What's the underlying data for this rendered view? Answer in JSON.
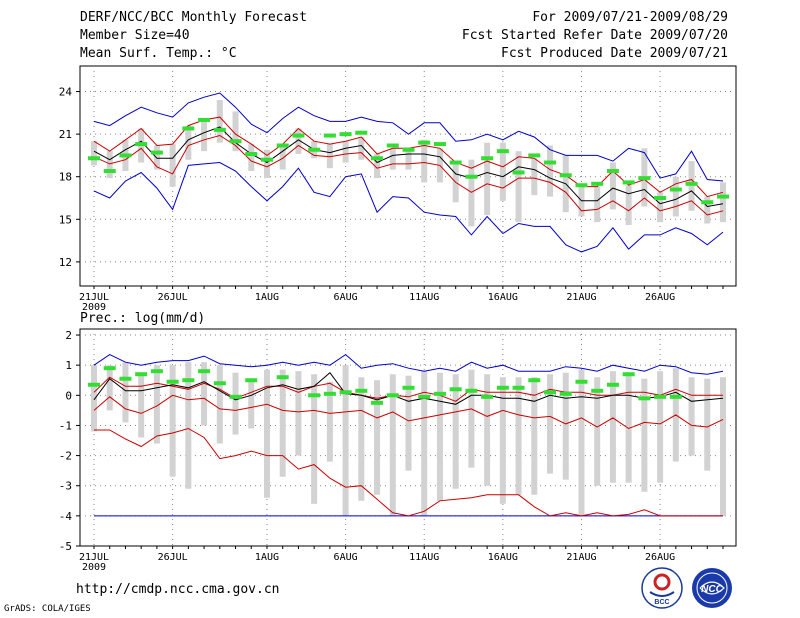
{
  "header": {
    "title": "DERF/NCC/BCC Monthly Forecast",
    "member": "Member Size=40",
    "variable": "Mean Surf. Temp.: °C",
    "period": "For 2009/07/21-2009/08/29",
    "started": "Fcst Started Refer Date 2009/07/20",
    "produced": "Fcst Produced Date 2009/07/21"
  },
  "precip_label": "Prec.: log(mm/d)",
  "url": "http://cmdp.ncc.cma.gov.cn",
  "credit": "GrADS: COLA/IGES",
  "logos": {
    "bcc": "BCC",
    "ncc": "NCC"
  },
  "colors": {
    "max": "#0000cc",
    "quartile": "#cc0000",
    "median": "#000000",
    "obs": "#33dd33",
    "box": "#d2d2d2",
    "grid": "#888888"
  },
  "chart_data": [
    {
      "type": "line",
      "name": "temperature",
      "ylabel": "Mean Surf. Temp.: °C",
      "ylim": [
        10.3,
        25.8
      ],
      "yticks": [
        12,
        15,
        18,
        21,
        24
      ],
      "grid": true,
      "xlabels": [
        {
          "day": 0,
          "label": "21JUL",
          "sub": "2009"
        },
        {
          "day": 5,
          "label": "26JUL"
        },
        {
          "day": 11,
          "label": "1AUG"
        },
        {
          "day": 16,
          "label": "6AUG"
        },
        {
          "day": 21,
          "label": "11AUG"
        },
        {
          "day": 26,
          "label": "16AUG"
        },
        {
          "day": 31,
          "label": "21AUG"
        },
        {
          "day": 36,
          "label": "26AUG"
        }
      ],
      "days": 40,
      "series": [
        {
          "name": "max",
          "values": [
            21.9,
            21.6,
            22.3,
            22.9,
            22.5,
            22.2,
            23.2,
            23.6,
            23.9,
            22.9,
            21.7,
            21.1,
            22.1,
            22.9,
            22.3,
            21.9,
            21.9,
            22.2,
            21.9,
            21.8,
            21.0,
            21.8,
            21.8,
            20.5,
            20.6,
            21.0,
            20.6,
            21.2,
            20.8,
            19.9,
            19.5,
            19.5,
            19.5,
            19.1,
            20.0,
            19.7,
            17.9,
            18.2,
            19.8,
            17.8,
            17.7
          ]
        },
        {
          "name": "q3",
          "values": [
            20.5,
            19.8,
            20.6,
            21.4,
            20.2,
            20.3,
            21.6,
            22.0,
            22.2,
            21.0,
            20.3,
            19.5,
            20.3,
            21.4,
            20.5,
            20.3,
            20.5,
            20.8,
            19.6,
            20.0,
            20.0,
            20.2,
            20.0,
            19.0,
            18.6,
            19.1,
            18.7,
            19.4,
            19.3,
            18.5,
            18.1,
            17.3,
            17.3,
            18.4,
            17.4,
            17.8,
            16.9,
            17.5,
            17.8,
            16.6,
            16.9
          ]
        },
        {
          "name": "median",
          "values": [
            19.8,
            19.2,
            19.9,
            20.5,
            19.3,
            19.3,
            20.6,
            21.1,
            21.5,
            20.4,
            19.6,
            19.0,
            19.8,
            20.6,
            19.9,
            19.7,
            20.0,
            20.2,
            19.0,
            19.5,
            19.6,
            19.6,
            19.4,
            18.2,
            17.9,
            18.3,
            18.0,
            18.7,
            18.5,
            17.9,
            17.5,
            16.3,
            16.3,
            17.2,
            16.8,
            17.1,
            16.1,
            16.4,
            17.0,
            15.9,
            16.1
          ]
        },
        {
          "name": "q1",
          "values": [
            19.4,
            18.9,
            19.2,
            20.0,
            18.7,
            18.2,
            20.2,
            20.6,
            20.9,
            20.2,
            19.1,
            18.7,
            19.3,
            20.2,
            19.5,
            19.4,
            19.6,
            19.7,
            18.6,
            18.9,
            18.9,
            19.0,
            18.8,
            17.6,
            16.9,
            17.5,
            17.2,
            17.9,
            17.9,
            17.6,
            16.9,
            15.6,
            15.7,
            16.3,
            15.6,
            16.5,
            15.6,
            15.9,
            16.3,
            15.3,
            15.6
          ]
        },
        {
          "name": "min",
          "values": [
            17.0,
            16.5,
            17.7,
            18.3,
            17.2,
            15.7,
            18.8,
            18.9,
            19.0,
            18.4,
            17.3,
            16.3,
            17.3,
            18.6,
            16.9,
            16.6,
            18.0,
            18.2,
            15.5,
            16.6,
            16.5,
            15.5,
            15.3,
            15.2,
            13.9,
            15.2,
            14.0,
            14.7,
            14.5,
            14.5,
            13.2,
            12.7,
            13.1,
            14.4,
            12.9,
            13.9,
            13.9,
            14.4,
            14.0,
            13.2,
            14.1
          ]
        },
        {
          "name": "box_top",
          "values": [
            20.5,
            19.8,
            20.6,
            21.4,
            20.2,
            20.3,
            21.6,
            22.0,
            23.4,
            22.6,
            20.3,
            19.9,
            20.3,
            21.4,
            20.5,
            20.3,
            20.5,
            20.8,
            19.6,
            20.0,
            20.0,
            20.6,
            20.0,
            19.0,
            19.2,
            20.4,
            20.4,
            19.8,
            19.3,
            20.2,
            19.5,
            17.3,
            17.3,
            19.0,
            17.4,
            20.0,
            16.9,
            18.0,
            19.1,
            16.6,
            17.6
          ]
        },
        {
          "name": "box_bottom",
          "values": [
            18.8,
            17.9,
            18.4,
            19.0,
            18.5,
            17.3,
            19.2,
            19.8,
            20.4,
            19.8,
            18.4,
            17.9,
            18.5,
            19.6,
            19.3,
            18.6,
            19.0,
            19.2,
            17.9,
            18.5,
            18.5,
            17.6,
            17.6,
            16.2,
            14.5,
            15.3,
            16.3,
            14.8,
            16.7,
            16.6,
            15.5,
            15.2,
            14.8,
            15.7,
            14.6,
            15.9,
            14.8,
            15.2,
            15.6,
            14.7,
            14.8
          ]
        },
        {
          "name": "observed",
          "values": [
            19.3,
            18.4,
            19.5,
            20.3,
            19.7,
            null,
            21.4,
            22.0,
            21.3,
            20.5,
            19.6,
            19.2,
            20.2,
            20.9,
            19.9,
            20.9,
            21.0,
            21.1,
            19.3,
            20.2,
            19.9,
            20.4,
            20.3,
            19.0,
            18.0,
            19.3,
            19.8,
            18.3,
            19.5,
            19.0,
            18.1,
            17.4,
            17.5,
            18.4,
            17.6,
            17.9,
            16.5,
            17.1,
            17.5,
            16.2,
            16.6
          ]
        }
      ]
    },
    {
      "type": "line",
      "name": "precipitation",
      "ylabel": "Prec.: log(mm/d)",
      "ylim": [
        -5,
        2.2
      ],
      "yticks": [
        -5,
        -4,
        -3,
        -2,
        -1,
        0,
        1,
        2
      ],
      "grid": true,
      "xlabels": [
        {
          "day": 0,
          "label": "21JUL",
          "sub": "2009"
        },
        {
          "day": 5,
          "label": "26JUL"
        },
        {
          "day": 11,
          "label": "1AUG"
        },
        {
          "day": 16,
          "label": "6AUG"
        },
        {
          "day": 21,
          "label": "11AUG"
        },
        {
          "day": 26,
          "label": "16AUG"
        },
        {
          "day": 31,
          "label": "21AUG"
        },
        {
          "day": 36,
          "label": "26AUG"
        }
      ],
      "days": 40,
      "series": [
        {
          "name": "max",
          "values": [
            1.0,
            1.35,
            1.1,
            1.0,
            1.1,
            1.15,
            1.15,
            1.3,
            1.05,
            1.0,
            0.95,
            1.0,
            1.1,
            1.0,
            1.1,
            1.0,
            1.35,
            0.9,
            1.0,
            1.05,
            0.9,
            0.8,
            0.9,
            0.8,
            1.1,
            0.9,
            1.0,
            0.8,
            0.8,
            0.8,
            0.95,
            0.9,
            0.8,
            1.0,
            0.9,
            0.8,
            1.0,
            0.95,
            0.75,
            0.7,
            0.8
          ]
        },
        {
          "name": "q3",
          "values": [
            0.1,
            0.6,
            0.3,
            0.3,
            0.4,
            0.3,
            0.2,
            0.4,
            0.2,
            -0.1,
            0.1,
            0.3,
            0.3,
            0.1,
            0.3,
            0.4,
            0.1,
            0.0,
            -0.1,
            0.0,
            -0.05,
            0.1,
            0.0,
            -0.2,
            0.2,
            0.1,
            0.1,
            0.1,
            0.0,
            0.2,
            0.1,
            0.1,
            0.0,
            0.0,
            0.1,
            0.1,
            0.0,
            0.2,
            0.0,
            0.0,
            0.0
          ]
        },
        {
          "name": "median",
          "values": [
            -0.15,
            0.55,
            0.15,
            0.15,
            0.25,
            0.35,
            0.25,
            0.45,
            0.15,
            -0.15,
            0.0,
            0.25,
            0.35,
            0.2,
            0.3,
            0.75,
            0.05,
            0.0,
            -0.15,
            0.0,
            -0.2,
            -0.1,
            -0.2,
            -0.3,
            0.0,
            0.0,
            -0.1,
            -0.1,
            -0.2,
            0.0,
            -0.1,
            -0.05,
            -0.1,
            0.0,
            0.0,
            -0.1,
            -0.05,
            0.1,
            -0.2,
            -0.15,
            -0.1
          ]
        },
        {
          "name": "q1",
          "values": [
            -0.5,
            -0.05,
            -0.45,
            -0.6,
            -0.35,
            0.0,
            -0.15,
            -0.1,
            -0.45,
            -0.5,
            -0.4,
            -0.3,
            -0.5,
            -0.55,
            -0.5,
            -0.6,
            -0.55,
            -0.5,
            -0.75,
            -0.55,
            -0.85,
            -0.75,
            -0.65,
            -0.55,
            -0.45,
            -0.7,
            -0.5,
            -0.65,
            -0.75,
            -0.7,
            -0.95,
            -0.75,
            -1.05,
            -0.75,
            -1.1,
            -0.9,
            -0.95,
            -0.65,
            -1.0,
            -1.05,
            -0.8
          ]
        },
        {
          "name": "min",
          "values": [
            -1.15,
            -1.15,
            -1.45,
            -1.7,
            -1.35,
            -1.25,
            -1.1,
            -1.4,
            -2.1,
            -2.0,
            -1.85,
            -2.0,
            -2.0,
            -2.45,
            -2.3,
            -2.75,
            -3.05,
            -3.0,
            -3.45,
            -3.9,
            -4.0,
            -3.85,
            -3.5,
            -3.45,
            -3.4,
            -3.3,
            -3.3,
            -3.3,
            -3.7,
            -4.0,
            -3.9,
            -4.0,
            -3.9,
            -4.0,
            -3.95,
            -3.8,
            -4.0,
            -4.0,
            -4.0,
            -4.0,
            -4.0
          ]
        },
        {
          "name": "floor",
          "values": [
            -4.0,
            -4.0,
            -4.0,
            -4.0,
            -4.0,
            -4.0,
            -4.0,
            -4.0,
            -4.0,
            -4.0,
            -4.0,
            -4.0,
            -4.0,
            -4.0,
            -4.0,
            -4.0,
            -4.0,
            -4.0,
            -4.0,
            -4.0,
            -4.0,
            -4.0,
            -4.0,
            -4.0,
            -4.0,
            -4.0,
            -4.0,
            -4.0,
            -4.0,
            -4.0,
            -4.0,
            -4.0,
            -4.0,
            -4.0,
            -4.0,
            -4.0,
            -4.0,
            -4.0,
            -4.0,
            -4.0,
            -4.0
          ]
        },
        {
          "name": "box_top",
          "values": [
            1.0,
            1.0,
            1.1,
            0.75,
            1.0,
            1.0,
            1.1,
            1.1,
            1.0,
            0.75,
            0.5,
            0.85,
            0.85,
            0.8,
            0.7,
            0.45,
            1.0,
            0.6,
            0.5,
            0.7,
            0.65,
            0.8,
            0.75,
            0.7,
            0.85,
            0.7,
            0.6,
            0.6,
            0.6,
            0.7,
            0.75,
            0.85,
            0.6,
            0.8,
            0.75,
            0.55,
            0.8,
            0.9,
            0.6,
            0.55,
            0.6
          ]
        },
        {
          "name": "box_bottom",
          "values": [
            -1.2,
            -0.5,
            -0.9,
            -1.4,
            -1.6,
            -2.7,
            -3.1,
            -1.0,
            -1.6,
            -1.3,
            -1.1,
            -3.4,
            -2.7,
            -2.0,
            -3.6,
            -2.2,
            -4.0,
            -3.5,
            -3.3,
            -4.0,
            -2.5,
            -4.0,
            -3.5,
            -3.1,
            -2.4,
            -3.0,
            -3.6,
            -3.3,
            -3.3,
            -2.6,
            -2.8,
            -4.0,
            -3.0,
            -2.9,
            -2.9,
            -3.2,
            -2.9,
            -2.2,
            -2.0,
            -2.5,
            -4.0
          ]
        },
        {
          "name": "observed",
          "values": [
            0.35,
            0.9,
            0.55,
            0.7,
            0.8,
            0.45,
            0.5,
            0.8,
            0.4,
            -0.05,
            0.5,
            null,
            0.6,
            null,
            0.0,
            0.05,
            0.1,
            0.15,
            -0.25,
            0.0,
            0.25,
            -0.05,
            0.05,
            0.2,
            0.15,
            -0.05,
            0.25,
            0.25,
            0.5,
            0.1,
            0.05,
            0.45,
            0.15,
            0.35,
            0.7,
            -0.1,
            -0.05,
            -0.05,
            null,
            null,
            null
          ]
        }
      ]
    }
  ]
}
